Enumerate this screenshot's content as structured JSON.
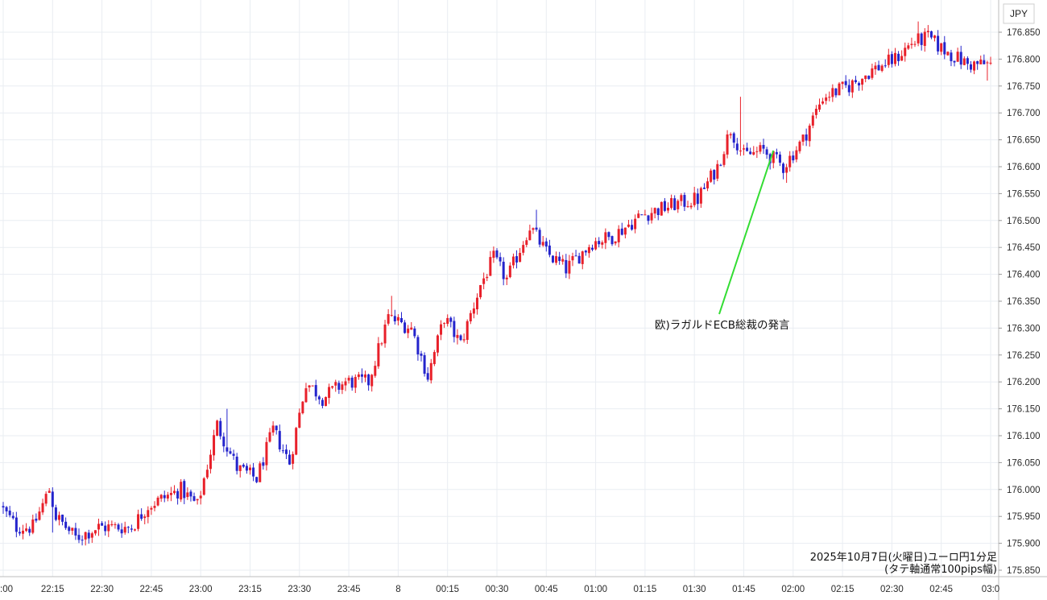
{
  "chart_data": {
    "type": "candlestick",
    "currency": "JPY",
    "caption_line1": "2025年10月7日(火曜日)ユーロ円1分足",
    "caption_line2": "(タテ軸通常100pips幅)",
    "annotation": {
      "text": "欧)ラガルドECB総裁の発言",
      "target_time": "01:54",
      "target_price": 176.618
    },
    "ylim": [
      175.84,
      176.88
    ],
    "xlim_minutes": [
      0,
      240
    ],
    "x_ticks": [
      {
        "label": ":00",
        "m": 0
      },
      {
        "label": "22:15",
        "m": 15
      },
      {
        "label": "22:30",
        "m": 30
      },
      {
        "label": "22:45",
        "m": 45
      },
      {
        "label": "23:00",
        "m": 60
      },
      {
        "label": "23:15",
        "m": 75
      },
      {
        "label": "23:30",
        "m": 90
      },
      {
        "label": "23:45",
        "m": 105
      },
      {
        "label": "8",
        "m": 120
      },
      {
        "label": "00:15",
        "m": 135
      },
      {
        "label": "00:30",
        "m": 150
      },
      {
        "label": "00:45",
        "m": 165
      },
      {
        "label": "01:00",
        "m": 180
      },
      {
        "label": "01:15",
        "m": 195
      },
      {
        "label": "01:30",
        "m": 210
      },
      {
        "label": "01:45",
        "m": 225
      },
      {
        "label": "02:00",
        "m": 240
      },
      {
        "label": "02:15",
        "m": 255
      },
      {
        "label": "02:30",
        "m": 270
      },
      {
        "label": "02:45",
        "m": 285
      },
      {
        "label": "03:0",
        "m": 300
      }
    ],
    "y_ticks": [
      "175.850",
      "175.900",
      "175.950",
      "176.000",
      "176.050",
      "176.100",
      "176.150",
      "176.200",
      "176.250",
      "176.300",
      "176.350",
      "176.400",
      "176.450",
      "176.500",
      "176.550",
      "176.600",
      "176.650",
      "176.700",
      "176.750",
      "176.800",
      "176.850"
    ],
    "up_color": "#e8202a",
    "down_color": "#2424cc",
    "annotation_color": "#33dd33",
    "grid": true,
    "keypoints": [
      {
        "m": 0,
        "p": 175.97
      },
      {
        "m": 5,
        "p": 175.93
      },
      {
        "m": 10,
        "p": 175.93
      },
      {
        "m": 15,
        "p": 176.0
      },
      {
        "m": 17,
        "p": 175.95
      },
      {
        "m": 23,
        "p": 175.91
      },
      {
        "m": 30,
        "p": 175.93
      },
      {
        "m": 40,
        "p": 175.93
      },
      {
        "m": 45,
        "p": 175.97
      },
      {
        "m": 55,
        "p": 176.0
      },
      {
        "m": 60,
        "p": 175.97
      },
      {
        "m": 66,
        "p": 176.12
      },
      {
        "m": 72,
        "p": 176.04
      },
      {
        "m": 78,
        "p": 176.02
      },
      {
        "m": 83,
        "p": 176.11
      },
      {
        "m": 88,
        "p": 176.05
      },
      {
        "m": 93,
        "p": 176.2
      },
      {
        "m": 98,
        "p": 176.17
      },
      {
        "m": 105,
        "p": 176.2
      },
      {
        "m": 112,
        "p": 176.2
      },
      {
        "m": 118,
        "p": 176.32
      },
      {
        "m": 125,
        "p": 176.3
      },
      {
        "m": 130,
        "p": 176.21
      },
      {
        "m": 135,
        "p": 176.32
      },
      {
        "m": 140,
        "p": 176.27
      },
      {
        "m": 146,
        "p": 176.38
      },
      {
        "m": 150,
        "p": 176.43
      },
      {
        "m": 154,
        "p": 176.39
      },
      {
        "m": 161,
        "p": 176.49
      },
      {
        "m": 166,
        "p": 176.44
      },
      {
        "m": 172,
        "p": 176.41
      },
      {
        "m": 180,
        "p": 176.46
      },
      {
        "m": 186,
        "p": 176.47
      },
      {
        "m": 195,
        "p": 176.51
      },
      {
        "m": 205,
        "p": 176.53
      },
      {
        "m": 212,
        "p": 176.54
      },
      {
        "m": 218,
        "p": 176.6
      },
      {
        "m": 222,
        "p": 176.67
      },
      {
        "m": 226,
        "p": 176.62
      },
      {
        "m": 232,
        "p": 176.63
      },
      {
        "m": 238,
        "p": 176.6
      },
      {
        "m": 244,
        "p": 176.65
      },
      {
        "m": 250,
        "p": 176.73
      },
      {
        "m": 258,
        "p": 176.75
      },
      {
        "m": 265,
        "p": 176.78
      },
      {
        "m": 272,
        "p": 176.8
      },
      {
        "m": 277,
        "p": 176.83
      },
      {
        "m": 282,
        "p": 176.84
      },
      {
        "m": 286,
        "p": 176.82
      },
      {
        "m": 294,
        "p": 176.79
      },
      {
        "m": 300,
        "p": 176.79
      }
    ],
    "spikes": [
      {
        "m": 15,
        "low": 175.92,
        "high": 176.0
      },
      {
        "m": 68,
        "high": 176.15
      },
      {
        "m": 118,
        "high": 176.36
      },
      {
        "m": 130,
        "low": 176.2
      },
      {
        "m": 162,
        "high": 176.52
      },
      {
        "m": 224,
        "high": 176.73
      },
      {
        "m": 238,
        "low": 176.57
      },
      {
        "m": 278,
        "high": 176.87
      },
      {
        "m": 299,
        "low": 176.76
      }
    ]
  }
}
